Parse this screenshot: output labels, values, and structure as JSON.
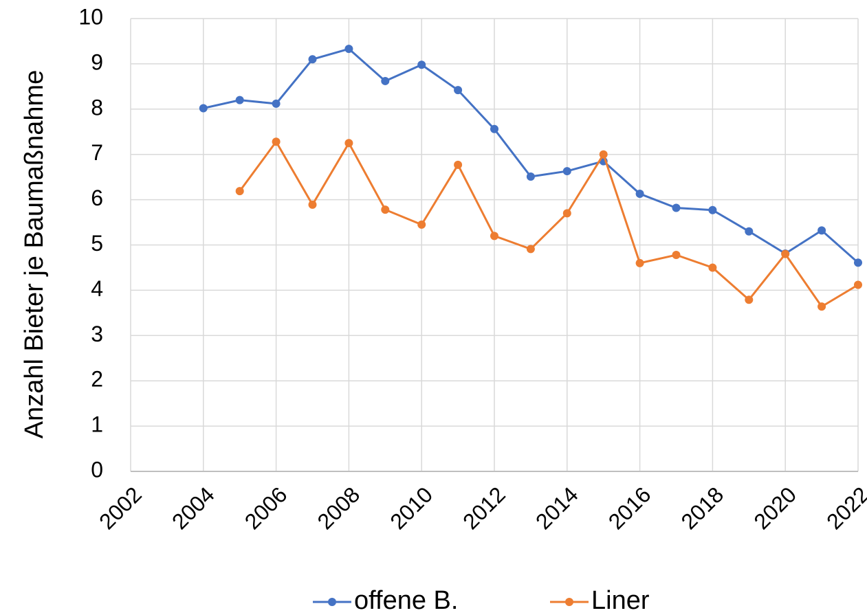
{
  "chart_data": {
    "type": "line",
    "y_label": "Anzahl Bieter je Baumaßnahme",
    "x": [
      2004,
      2005,
      2006,
      2007,
      2008,
      2009,
      2010,
      2011,
      2012,
      2013,
      2014,
      2015,
      2016,
      2017,
      2018,
      2019,
      2020,
      2021,
      2022
    ],
    "series": [
      {
        "name": "offene B.",
        "color": "#4472c4",
        "values": [
          8.02,
          8.2,
          8.12,
          9.1,
          9.33,
          8.62,
          8.98,
          8.42,
          7.56,
          6.51,
          6.63,
          6.85,
          6.13,
          5.82,
          5.77,
          5.3,
          4.81,
          5.32,
          4.61
        ]
      },
      {
        "name": "Liner",
        "color": "#ed7d31",
        "values": [
          null,
          6.19,
          7.28,
          5.89,
          7.25,
          5.78,
          5.45,
          6.77,
          5.2,
          4.91,
          5.7,
          7.0,
          4.6,
          4.78,
          4.5,
          3.79,
          4.8,
          3.64,
          4.12
        ]
      }
    ],
    "xlim": [
      2002,
      2022
    ],
    "xticks": [
      2002,
      2004,
      2006,
      2008,
      2010,
      2012,
      2014,
      2016,
      2018,
      2020,
      2022
    ],
    "ylim": [
      0,
      10
    ],
    "yticks": [
      0,
      1,
      2,
      3,
      4,
      5,
      6,
      7,
      8,
      9,
      10
    ],
    "grid": true,
    "legend": "bottom"
  }
}
